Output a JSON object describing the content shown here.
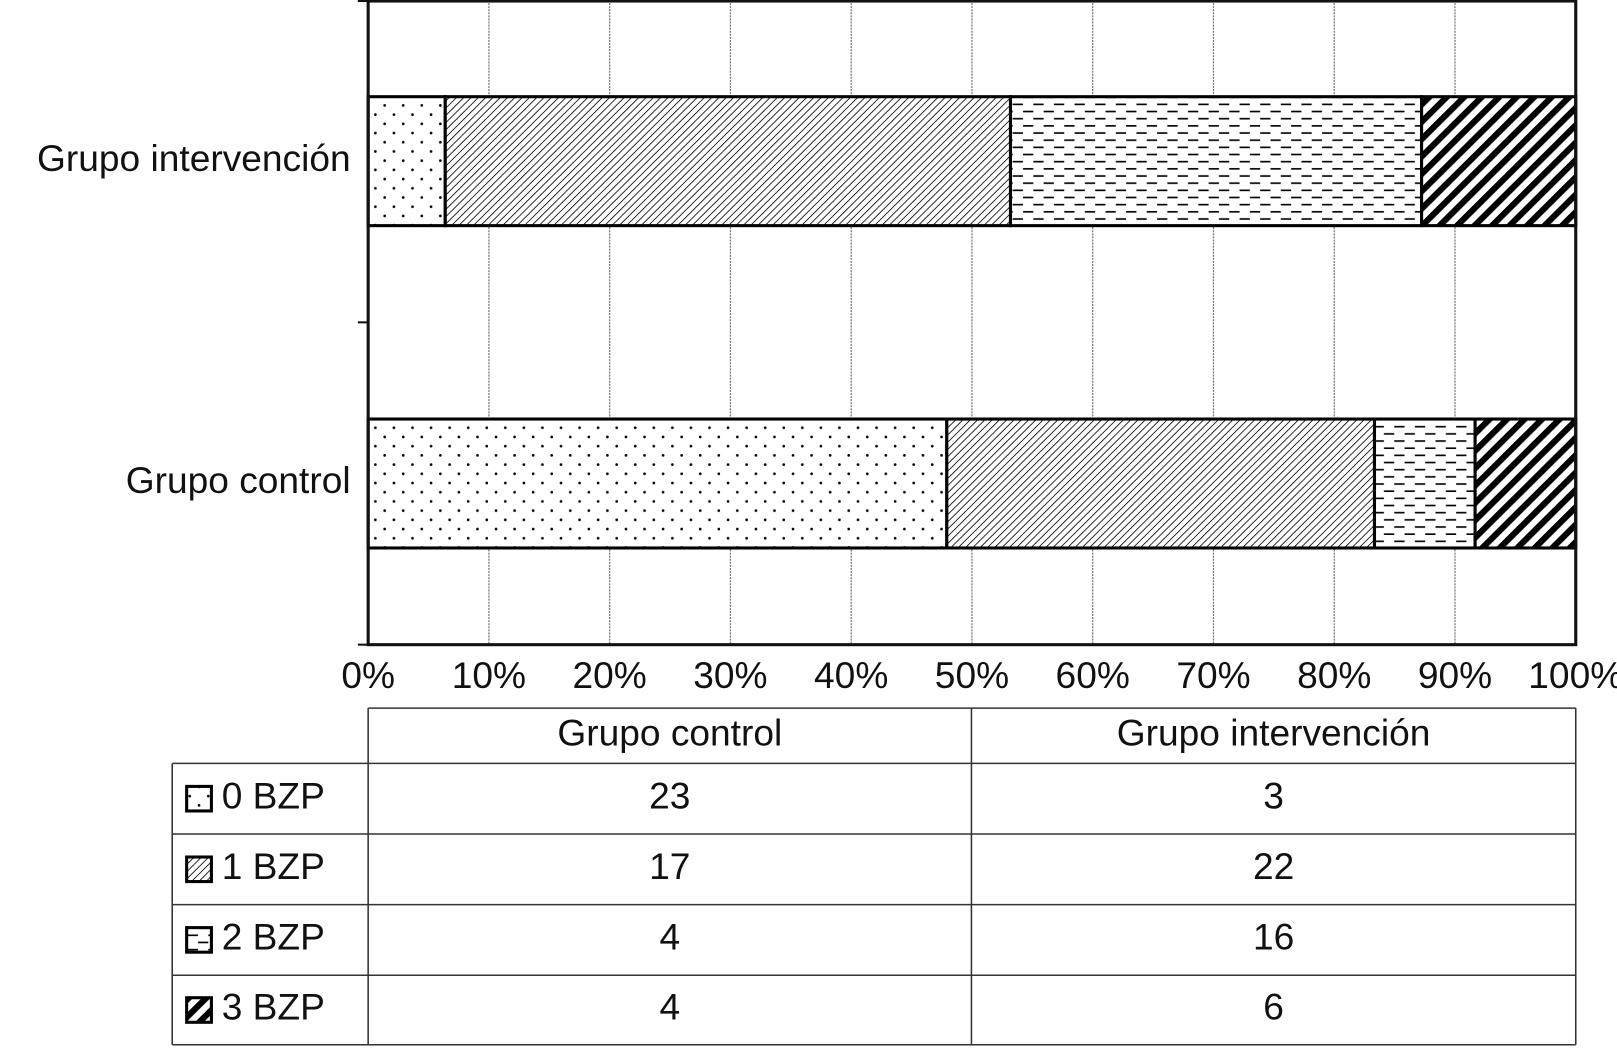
{
  "chart_data": {
    "type": "bar",
    "orientation": "horizontal",
    "stacked": "percent",
    "categories": [
      "Grupo control",
      "Grupo intervención"
    ],
    "series": [
      {
        "name": "0 BZP",
        "color": "#000000",
        "pattern": "dots",
        "values": [
          23,
          3
        ]
      },
      {
        "name": "1 BZP",
        "color": "#000000",
        "pattern": "fine-diagonal",
        "values": [
          17,
          22
        ]
      },
      {
        "name": "2 BZP",
        "color": "#000000",
        "pattern": "dashes",
        "values": [
          4,
          16
        ]
      },
      {
        "name": "3 BZP",
        "color": "#000000",
        "pattern": "bold-diagonal",
        "values": [
          4,
          6
        ]
      }
    ],
    "xlim": [
      0,
      100
    ],
    "xticks": [
      {
        "value": 0,
        "label": "0%"
      },
      {
        "value": 10,
        "label": "10%"
      },
      {
        "value": 20,
        "label": "20%"
      },
      {
        "value": 30,
        "label": "30%"
      },
      {
        "value": 40,
        "label": "40%"
      },
      {
        "value": 50,
        "label": "50%"
      },
      {
        "value": 60,
        "label": "60%"
      },
      {
        "value": 70,
        "label": "70%"
      },
      {
        "value": 80,
        "label": "80%"
      },
      {
        "value": 90,
        "label": "90%"
      },
      {
        "value": 100,
        "label": "100%"
      }
    ],
    "grid": true,
    "data_table": true
  }
}
